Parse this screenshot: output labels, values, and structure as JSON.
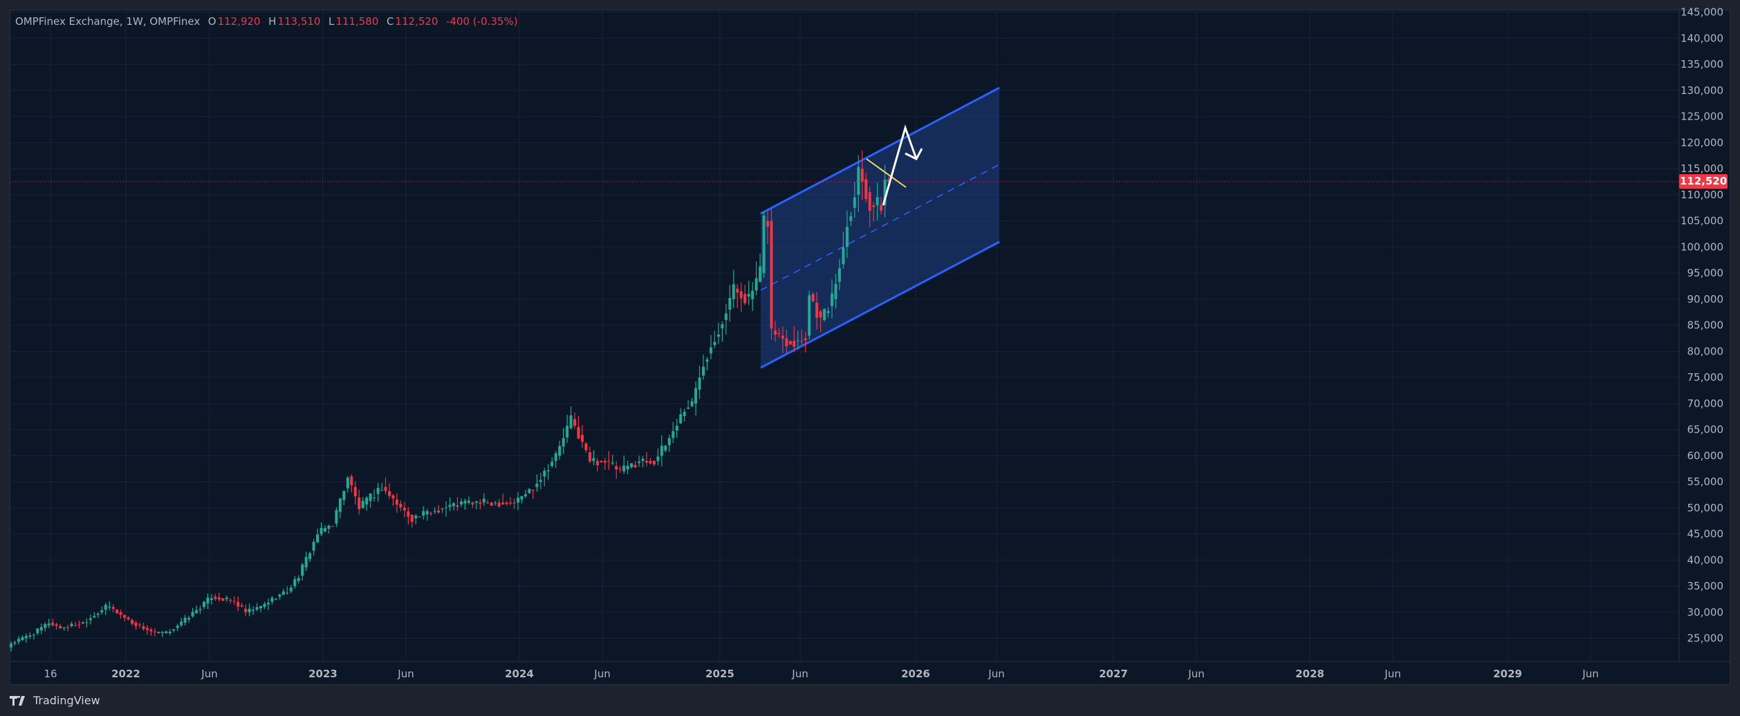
{
  "legend": {
    "symbol": "OMPFinex Exchange, 1W, OMPFinex",
    "o_label": "O",
    "o": "112,920",
    "h_label": "H",
    "h": "113,510",
    "l_label": "L",
    "l": "111,580",
    "c_label": "C",
    "c": "112,520",
    "change": "-400 (-0.35%)"
  },
  "last_price_label": "112,520",
  "brand": "TradingView",
  "colors": {
    "up": "#22ab94",
    "down": "#f23645",
    "channel": "#2962ff",
    "channel_fill": "#1c3a7a",
    "trend": "#f0e05a",
    "arrow": "#ffffff",
    "background": "#0b1626"
  },
  "chart_data": {
    "type": "candlestick",
    "interval": "1W",
    "title": "OMPFinex Exchange, 1W, OMPFinex",
    "ylim": [
      20000,
      145000
    ],
    "y_ticks": [
      "145,000",
      "140,000",
      "135,000",
      "130,000",
      "125,000",
      "120,000",
      "115,000",
      "110,000",
      "105,000",
      "100,000",
      "95,000",
      "90,000",
      "85,000",
      "80,000",
      "75,000",
      "70,000",
      "65,000",
      "60,000",
      "55,000",
      "50,000",
      "45,000",
      "40,000",
      "35,000",
      "30,000",
      "25,000"
    ],
    "x_ticks": [
      {
        "label": "16",
        "bold": false
      },
      {
        "label": "2022",
        "bold": true
      },
      {
        "label": "Jun",
        "bold": false
      },
      {
        "label": "2023",
        "bold": true
      },
      {
        "label": "Jun",
        "bold": false
      },
      {
        "label": "2024",
        "bold": true
      },
      {
        "label": "Jun",
        "bold": false
      },
      {
        "label": "2025",
        "bold": true
      },
      {
        "label": "Jun",
        "bold": false
      },
      {
        "label": "2026",
        "bold": true
      },
      {
        "label": "Jun",
        "bold": false
      },
      {
        "label": "2027",
        "bold": true
      },
      {
        "label": "Jun",
        "bold": false
      },
      {
        "label": "2028",
        "bold": true
      },
      {
        "label": "Jun",
        "bold": false
      },
      {
        "label": "2029",
        "bold": true
      },
      {
        "label": "Jun",
        "bold": false
      }
    ],
    "weekly_close_anchors": [
      [
        0,
        24000
      ],
      [
        6,
        26000
      ],
      [
        10,
        28000
      ],
      [
        13,
        27000
      ],
      [
        19,
        28000
      ],
      [
        25,
        31000
      ],
      [
        26,
        31000
      ],
      [
        32,
        28000
      ],
      [
        38,
        26000
      ],
      [
        41,
        26000
      ],
      [
        45,
        28000
      ],
      [
        50,
        31000
      ],
      [
        53,
        33000
      ],
      [
        59,
        32000
      ],
      [
        62,
        30000
      ],
      [
        66,
        31000
      ],
      [
        70,
        33000
      ],
      [
        73,
        34000
      ],
      [
        76,
        37000
      ],
      [
        81,
        45000
      ],
      [
        85,
        47000
      ],
      [
        89,
        56000
      ],
      [
        92,
        50000
      ],
      [
        95,
        52000
      ],
      [
        98,
        54000
      ],
      [
        103,
        50000
      ],
      [
        106,
        48000
      ],
      [
        114,
        50000
      ],
      [
        120,
        51000
      ],
      [
        126,
        51000
      ],
      [
        133,
        51000
      ],
      [
        138,
        54000
      ],
      [
        144,
        60000
      ],
      [
        148,
        67000
      ],
      [
        150,
        64000
      ],
      [
        153,
        59000
      ],
      [
        157,
        59000
      ],
      [
        161,
        57000
      ],
      [
        166,
        59000
      ],
      [
        170,
        59000
      ],
      [
        173,
        62000
      ],
      [
        178,
        69000
      ],
      [
        180,
        70000
      ],
      [
        183,
        78000
      ],
      [
        188,
        86000
      ],
      [
        191,
        92000
      ],
      [
        195,
        90000
      ],
      [
        198,
        95000
      ],
      [
        199,
        105000
      ],
      [
        200,
        105000
      ],
      [
        201,
        84000
      ],
      [
        205,
        82000
      ],
      [
        208,
        82000
      ],
      [
        210,
        83000
      ],
      [
        211,
        91000
      ],
      [
        214,
        86000
      ],
      [
        217,
        90000
      ],
      [
        220,
        100000
      ],
      [
        221,
        105000
      ],
      [
        223,
        110000
      ],
      [
        224,
        115000
      ],
      [
        225,
        113000
      ],
      [
        227,
        108000
      ],
      [
        230,
        108000
      ],
      [
        231,
        112920
      ],
      [
        232,
        112520
      ]
    ],
    "last_candle": {
      "open": 112920,
      "high": 113510,
      "low": 111580,
      "close": 112520
    },
    "drawings": {
      "parallel_channel": {
        "upper": [
          106500,
          131000
        ],
        "lower": [
          77000,
          101000
        ]
      },
      "trend_line": [
        117500,
        112000
      ],
      "projection_arrow": [
        108000,
        123000,
        117000
      ]
    }
  }
}
